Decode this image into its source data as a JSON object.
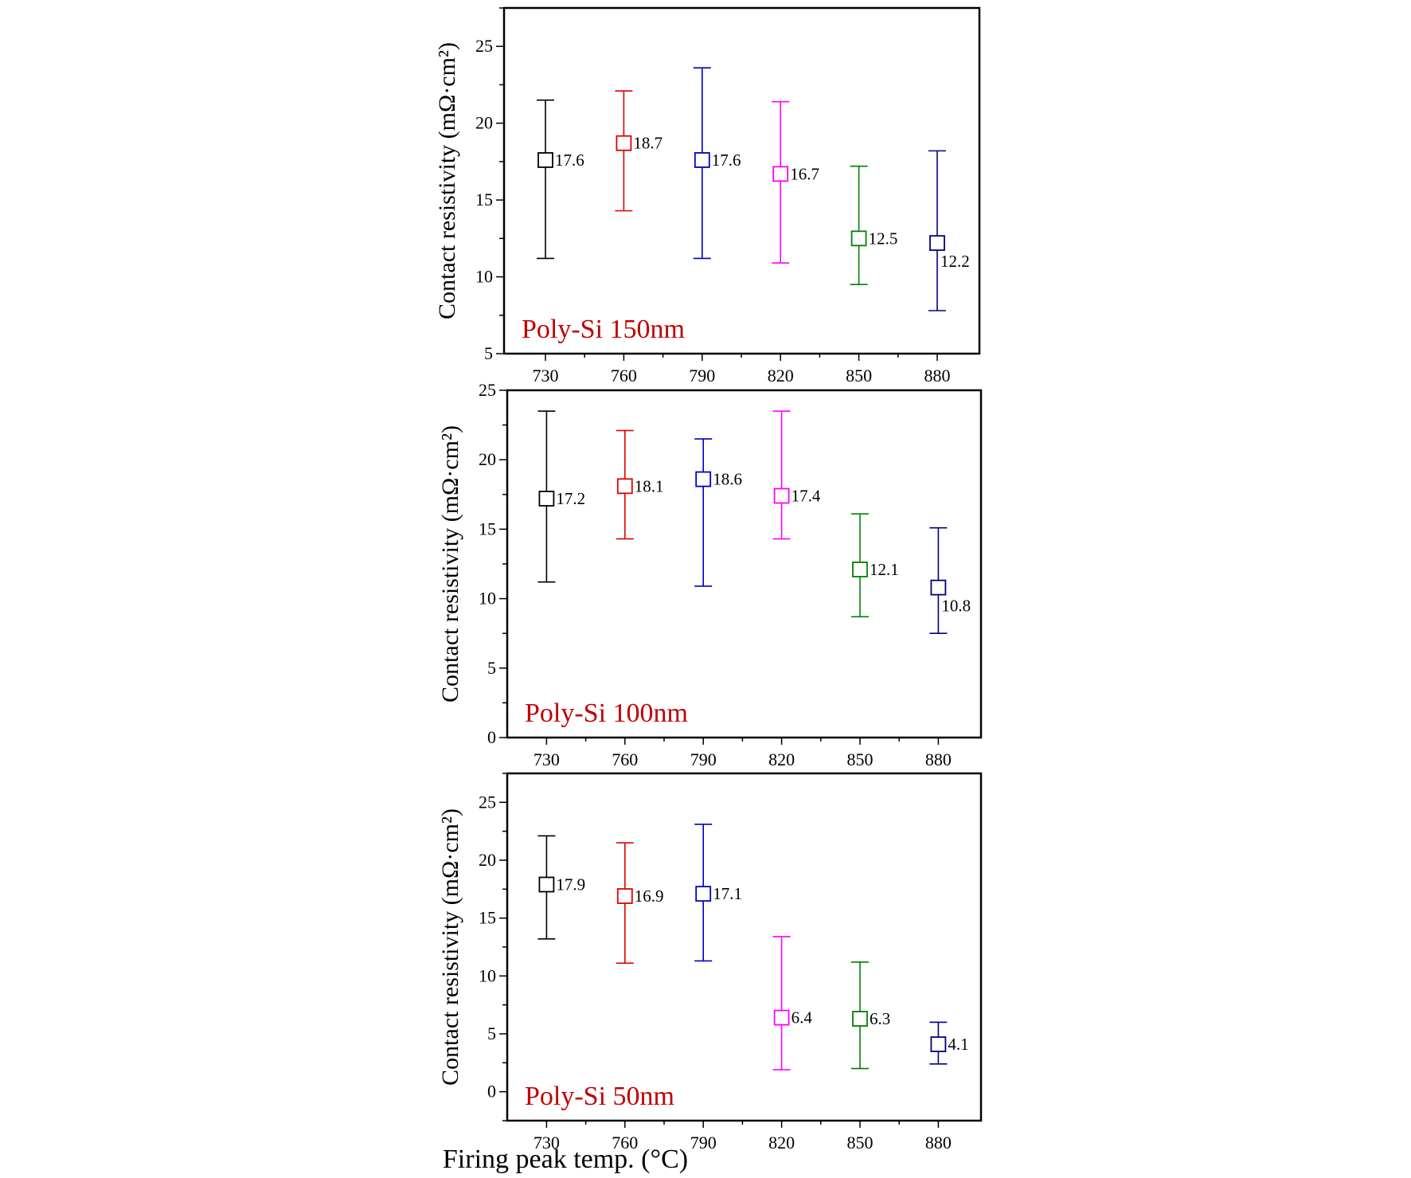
{
  "chart_data": [
    {
      "type": "scatter",
      "panel_label": "Poly-Si 150nm",
      "ylabel": "Contact resistivity (mΩ·cm²)",
      "xlabel": "",
      "x": [
        730,
        760,
        790,
        820,
        850,
        880
      ],
      "x_tick_labels": [
        "730",
        "760",
        "790",
        "820",
        "850",
        "880"
      ],
      "values": [
        17.6,
        18.7,
        17.6,
        16.7,
        12.5,
        12.2
      ],
      "value_labels": [
        "17.6",
        "18.7",
        "17.6",
        "16.7",
        "12.5",
        "12.2"
      ],
      "err_low": [
        11.2,
        14.3,
        11.2,
        10.9,
        9.5,
        7.8
      ],
      "err_high": [
        21.5,
        22.1,
        23.6,
        21.4,
        17.2,
        18.2
      ],
      "colors": [
        "#000000",
        "#e00000",
        "#0000c0",
        "#ff00ff",
        "#008000",
        "#000080"
      ],
      "ylim": [
        5,
        27.5
      ],
      "y_ticks": [
        5,
        10,
        15,
        20,
        25
      ],
      "y_tick_labels": [
        "5",
        "10",
        "15",
        "20",
        "25"
      ],
      "marker": "open-square",
      "grid": false
    },
    {
      "type": "scatter",
      "panel_label": "Poly-Si 100nm",
      "ylabel": "Contact resistivity (mΩ·cm²)",
      "xlabel": "",
      "x": [
        730,
        760,
        790,
        820,
        850,
        880
      ],
      "x_tick_labels": [
        "730",
        "760",
        "790",
        "820",
        "850",
        "880"
      ],
      "values": [
        17.2,
        18.1,
        18.6,
        17.4,
        12.1,
        10.8
      ],
      "value_labels": [
        "17.2",
        "18.1",
        "18.6",
        "17.4",
        "12.1",
        "10.8"
      ],
      "err_low": [
        11.2,
        14.3,
        10.9,
        14.3,
        8.7,
        7.5
      ],
      "err_high": [
        23.5,
        22.1,
        21.5,
        23.5,
        16.1,
        15.1
      ],
      "colors": [
        "#000000",
        "#e00000",
        "#0000c0",
        "#ff00ff",
        "#008000",
        "#000080"
      ],
      "ylim": [
        0,
        25
      ],
      "y_ticks": [
        0,
        5,
        10,
        15,
        20,
        25
      ],
      "y_tick_labels": [
        "0",
        "5",
        "10",
        "15",
        "20",
        "25"
      ],
      "marker": "open-square",
      "grid": false
    },
    {
      "type": "scatter",
      "panel_label": "Poly-Si 50nm",
      "ylabel": "Contact resistivity (mΩ·cm²)",
      "xlabel": "Firing peak temp. (°C)",
      "x": [
        730,
        760,
        790,
        820,
        850,
        880
      ],
      "x_tick_labels": [
        "730",
        "760",
        "790",
        "820",
        "850",
        "880"
      ],
      "values": [
        17.9,
        16.9,
        17.1,
        6.4,
        6.3,
        4.1
      ],
      "value_labels": [
        "17.9",
        "16.9",
        "17.1",
        "6.4",
        "6.3",
        "4.1"
      ],
      "err_low": [
        13.2,
        11.1,
        11.3,
        1.9,
        2.0,
        2.4
      ],
      "err_high": [
        22.1,
        21.5,
        23.1,
        13.4,
        11.2,
        6.0
      ],
      "colors": [
        "#000000",
        "#e00000",
        "#0000c0",
        "#ff00ff",
        "#008000",
        "#000080"
      ],
      "ylim": [
        -2.5,
        27.5
      ],
      "y_ticks": [
        0,
        5,
        10,
        15,
        20,
        25
      ],
      "y_tick_labels": [
        "0",
        "5",
        "10",
        "15",
        "20",
        "25"
      ],
      "marker": "open-square",
      "grid": false
    }
  ]
}
